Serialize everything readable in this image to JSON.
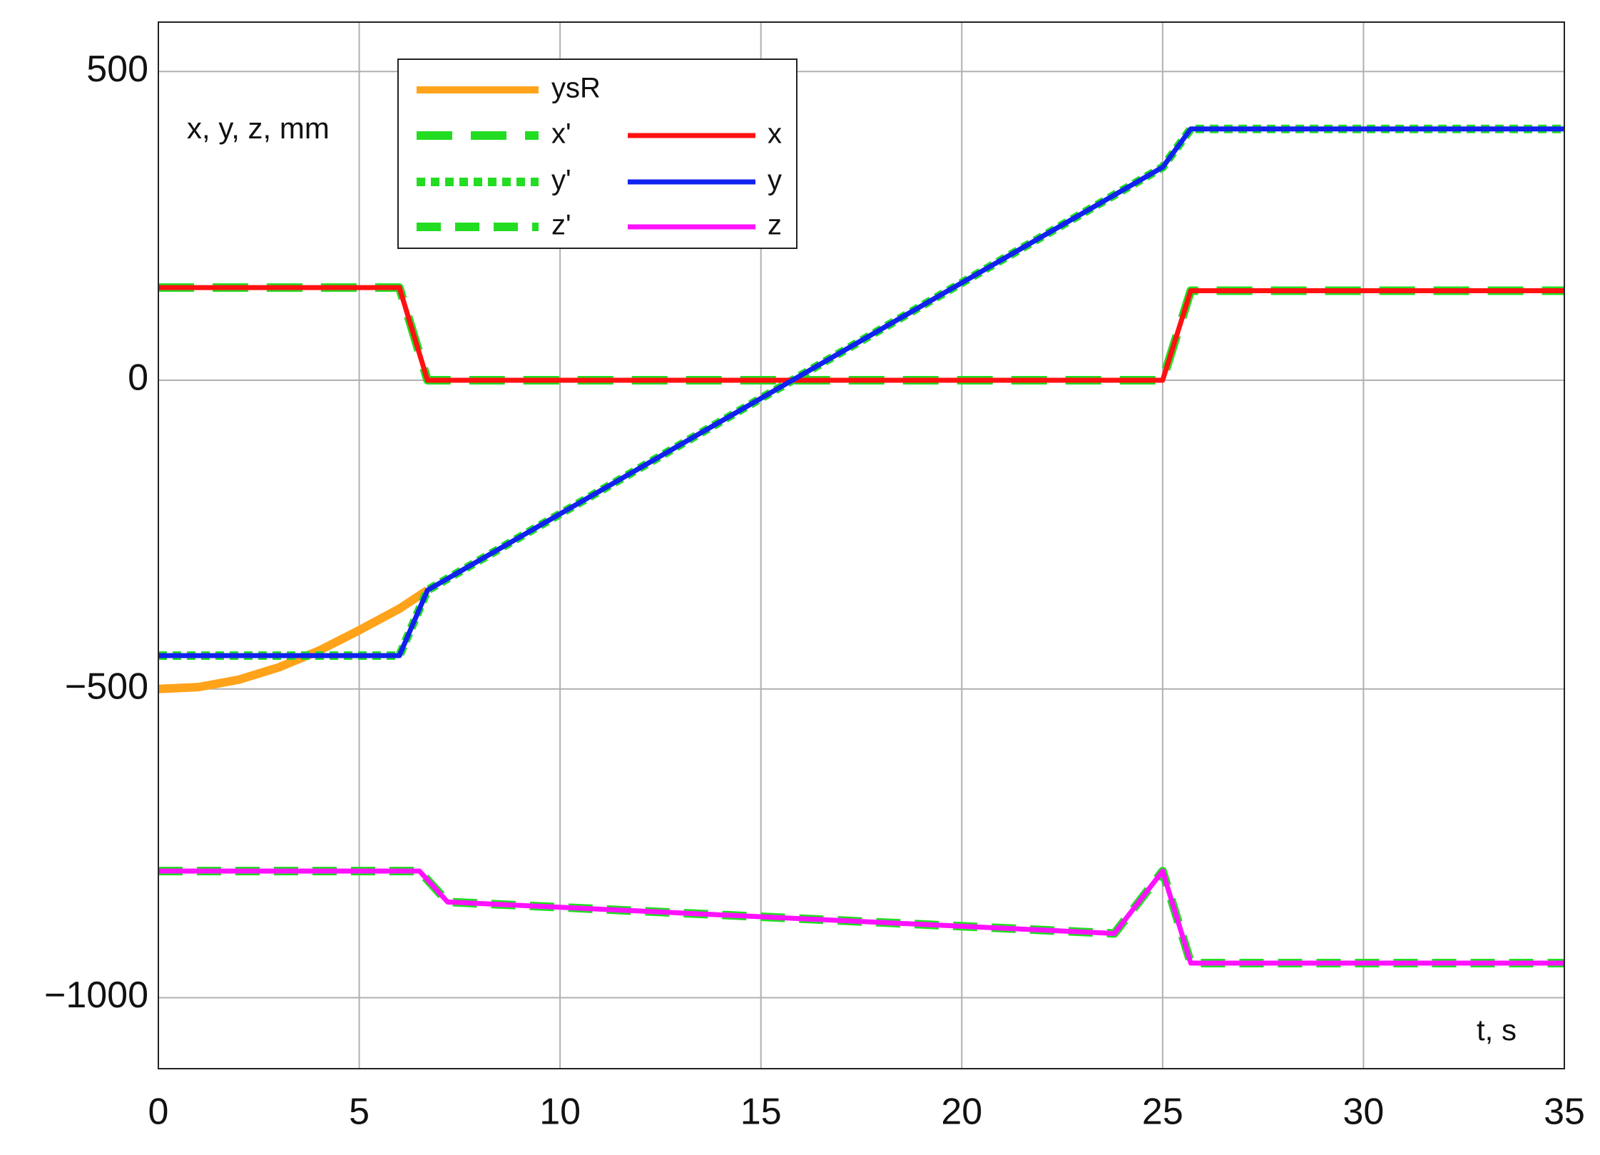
{
  "chart_data": {
    "type": "line",
    "xlim": [
      0,
      35
    ],
    "ylim": [
      -1115,
      580
    ],
    "xticks": [
      0,
      5,
      10,
      15,
      20,
      25,
      30,
      35
    ],
    "yticks": [
      {
        "value": -1000,
        "label": "−1000"
      },
      {
        "value": -500,
        "label": "−500"
      },
      0,
      500
    ],
    "grid": true,
    "annotations": [
      "x, y, z, mm",
      "t, s"
    ],
    "series": [
      {
        "name": "ysR",
        "color": "#ffa31a",
        "linestyle": "solid",
        "x": [
          0,
          1,
          2,
          3,
          4,
          5,
          6,
          6.7
        ],
        "values": [
          -500,
          -497,
          -485,
          -465,
          -438,
          -405,
          -370,
          -340
        ]
      },
      {
        "name": "x'",
        "color": "#22dd22",
        "linestyle": "dashed",
        "x": [
          0,
          6,
          6.7,
          25,
          25.7,
          35
        ],
        "values": [
          150,
          150,
          0,
          0,
          145,
          145
        ]
      },
      {
        "name": "y'",
        "color": "#22dd22",
        "linestyle": "dotted",
        "x": [
          0,
          6,
          6.7,
          25,
          25.7,
          35
        ],
        "values": [
          -446,
          -446,
          -340,
          345,
          407,
          407
        ]
      },
      {
        "name": "z'",
        "color": "#22dd22",
        "linestyle": "dashed",
        "x": [
          0,
          6.5,
          7.2,
          23.8,
          25,
          25.7,
          35
        ],
        "values": [
          -795,
          -795,
          -845,
          -896,
          -795,
          -944,
          -944
        ]
      },
      {
        "name": "x",
        "color": "#ff1111",
        "linestyle": "solid",
        "x": [
          0,
          6,
          6.7,
          25,
          25.7,
          35
        ],
        "values": [
          150,
          150,
          0,
          0,
          145,
          145
        ]
      },
      {
        "name": "y",
        "color": "#1122ee",
        "linestyle": "solid",
        "x": [
          0,
          6,
          6.7,
          25,
          25.7,
          35
        ],
        "values": [
          -446,
          -446,
          -340,
          345,
          407,
          407
        ]
      },
      {
        "name": "z",
        "color": "#ff11ff",
        "linestyle": "solid",
        "x": [
          0,
          6.5,
          7.2,
          23.8,
          25,
          25.7,
          35
        ],
        "values": [
          -795,
          -795,
          -845,
          -896,
          -795,
          -944,
          -944
        ]
      }
    ]
  }
}
